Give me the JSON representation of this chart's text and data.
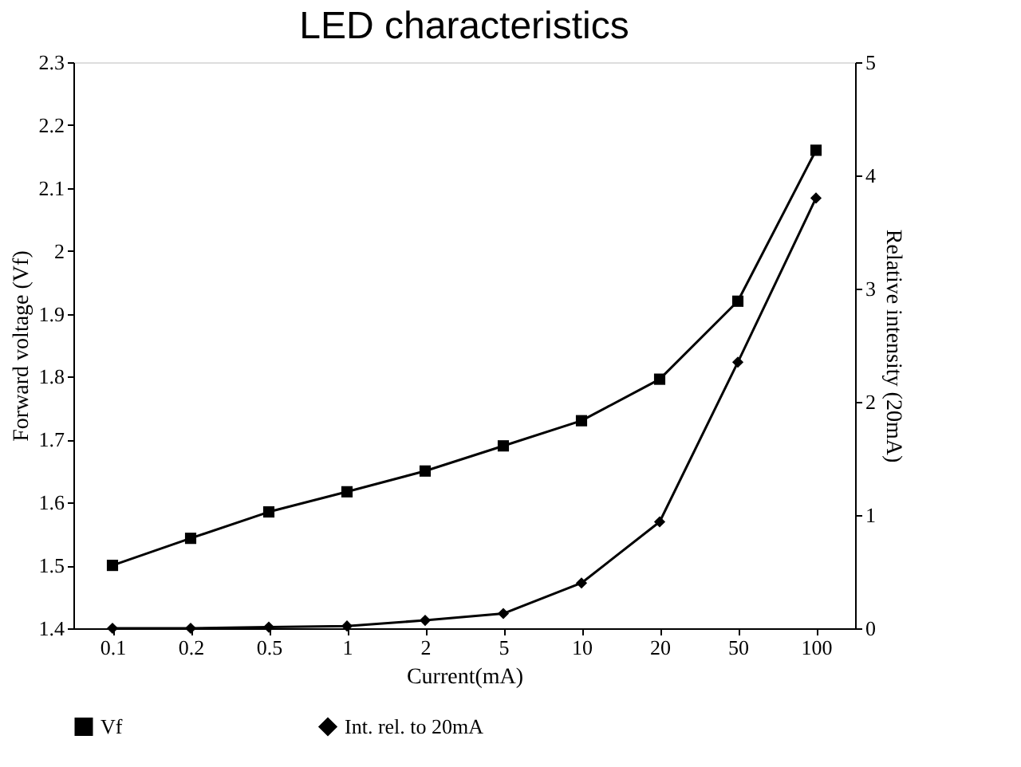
{
  "chart_data": {
    "type": "line",
    "title": "LED characteristics",
    "xlabel": "Current(mA)",
    "ylabel": "Forward voltage (Vf)",
    "y2label": "Relative intensity (20mA)",
    "categories": [
      "0.1",
      "0.2",
      "0.5",
      "1",
      "2",
      "5",
      "10",
      "20",
      "50",
      "100"
    ],
    "series": [
      {
        "name": "Vf",
        "color": "#000000",
        "marker": "square",
        "values": [
          1.5,
          1.543,
          1.585,
          1.617,
          1.65,
          1.69,
          1.73,
          1.796,
          1.92,
          2.16
        ]
      },
      {
        "name": "Int. rel. to 20mA",
        "color": "#000000",
        "marker": "diamond",
        "axis": "y2",
        "values": [
          0,
          0,
          0.01,
          0.02,
          0.07,
          0.13,
          0.4,
          0.94,
          2.35,
          3.8
        ]
      }
    ],
    "ylim": [
      1.4,
      2.3
    ],
    "yticks": [
      1.4,
      1.5,
      1.6,
      1.7,
      1.8,
      1.9,
      2,
      2.1,
      2.2,
      2.3
    ],
    "y2lim": [
      0,
      5
    ],
    "y2ticks": [
      0,
      1,
      2,
      3,
      4,
      5
    ],
    "grid": false,
    "legend": "bottom",
    "line_style": "solid"
  }
}
